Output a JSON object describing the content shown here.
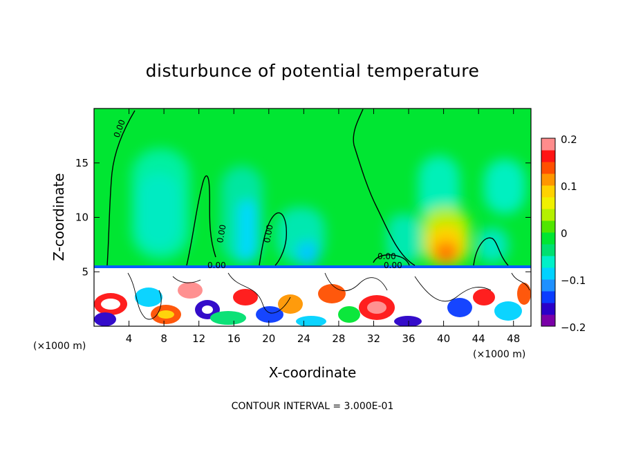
{
  "chart_data": {
    "type": "heatmap",
    "title": "disturbunce of potential temperature",
    "xlabel": "X-coordinate",
    "ylabel": "Z-coordinate",
    "x_unit": "(×1000 m)",
    "x_unit_right": "(×1000 m)",
    "xlim": [
      0,
      50
    ],
    "ylim": [
      0,
      20
    ],
    "xticks": [
      4,
      8,
      12,
      16,
      20,
      24,
      28,
      32,
      36,
      40,
      44,
      48
    ],
    "yticks": [
      5,
      10,
      15
    ],
    "colorbar": {
      "range": [
        -0.2,
        0.2
      ],
      "ticks": [
        "0.2",
        "0.1",
        "0",
        "−0.1",
        "−0.2"
      ],
      "colors": [
        "#7a00a8",
        "#2a00c8",
        "#0a3cff",
        "#1e90ff",
        "#00d2ff",
        "#00f0c8",
        "#00e070",
        "#00e632",
        "#50e600",
        "#b4f000",
        "#f0f000",
        "#ffd200",
        "#ff9600",
        "#ff5000",
        "#ff1414",
        "#ff8c8c"
      ]
    },
    "contour_labels": [
      "0.00",
      "0.00",
      "0.00",
      "0.00",
      "0.00",
      "0.00"
    ],
    "footer": "CONTOUR INTERVAL = 3.000E-01"
  }
}
